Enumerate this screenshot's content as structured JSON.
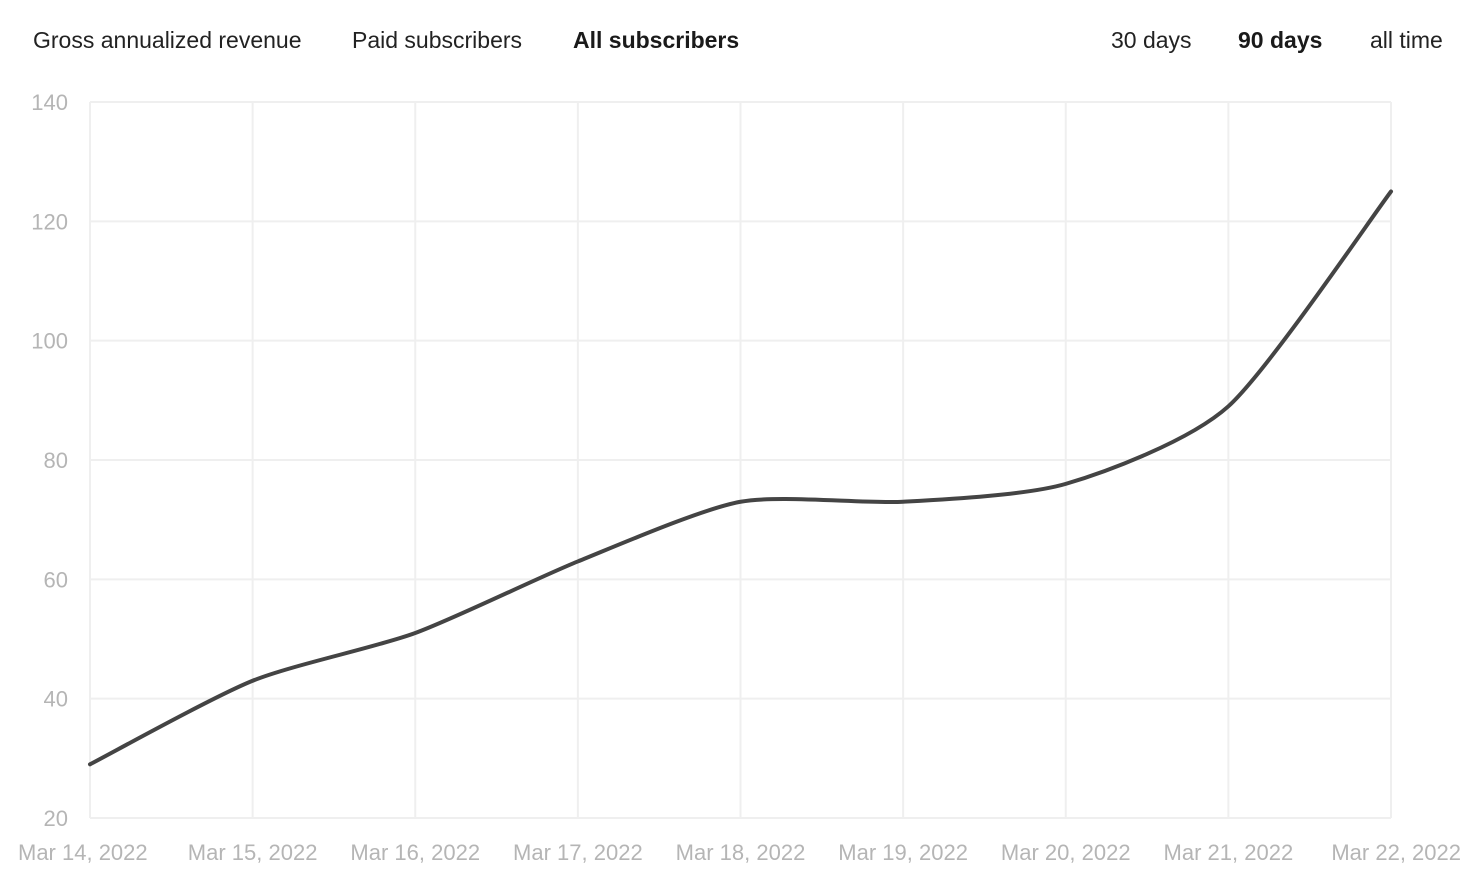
{
  "metric_tabs": [
    {
      "label": "Gross annualized revenue",
      "active": false
    },
    {
      "label": "Paid subscribers",
      "active": false
    },
    {
      "label": "All subscribers",
      "active": true
    }
  ],
  "range_tabs": [
    {
      "label": "30 days",
      "active": false
    },
    {
      "label": "90 days",
      "active": true
    },
    {
      "label": "all time",
      "active": false
    }
  ],
  "chart_data": {
    "type": "line",
    "x": [
      "Mar 14, 2022",
      "Mar 15, 2022",
      "Mar 16, 2022",
      "Mar 17, 2022",
      "Mar 18, 2022",
      "Mar 19, 2022",
      "Mar 20, 2022",
      "Mar 21, 2022",
      "Mar 22, 2022"
    ],
    "series": [
      {
        "values": [
          29,
          43,
          51,
          63,
          73,
          73,
          76,
          89,
          125
        ]
      }
    ],
    "ylim": [
      20,
      140
    ],
    "yticks": [
      20,
      40,
      60,
      80,
      100,
      120,
      140
    ],
    "grid": true,
    "line_color": "#444444"
  }
}
